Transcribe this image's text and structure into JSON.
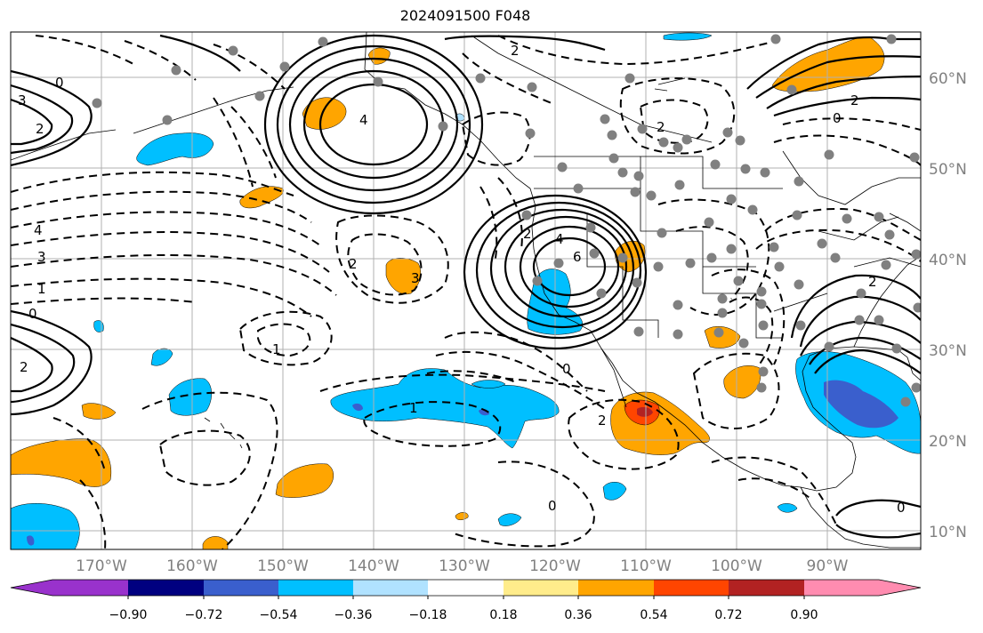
{
  "title": "2024091500 F048",
  "lat_labels": [
    "60°N",
    "50°N",
    "40°N",
    "30°N",
    "20°N",
    "10°N"
  ],
  "lon_labels": [
    "170°W",
    "160°W",
    "150°W",
    "140°W",
    "130°W",
    "120°W",
    "110°W",
    "100°W",
    "90°W"
  ],
  "colorbar": {
    "tick_labels": [
      "−0.90",
      "−0.72",
      "−0.54",
      "−0.36",
      "−0.18",
      "0.18",
      "0.36",
      "0.54",
      "0.72",
      "0.90"
    ],
    "colors": [
      "#9932CC",
      "#000080",
      "#3A5FCD",
      "#00BFFF",
      "#B0E2FF",
      "#FFFFFF",
      "#FFEC8B",
      "#FFA500",
      "#FF4500",
      "#B22222",
      "#FF8CB0"
    ]
  },
  "contour_labels": {
    "high_alaska": "4",
    "high_nevada": "6",
    "ring_nevada_4": "4",
    "ring_nevada_2": "2",
    "west_0": "0",
    "west_1": "1",
    "west_3": "3",
    "west_4": "4",
    "west_2": "2",
    "south_1": "1",
    "south_0": "0",
    "mex_2": "2",
    "trough_1": "1",
    "mid_2": "2",
    "mid_3": "3",
    "ne_2": "2",
    "ne_0": "0",
    "n_2": "2",
    "n_2b": "2",
    "e_2": "2",
    "gulf_0": "0",
    "se_0": "0",
    "nw_0": "0",
    "nw_3": "3",
    "nw_2": "2"
  }
}
